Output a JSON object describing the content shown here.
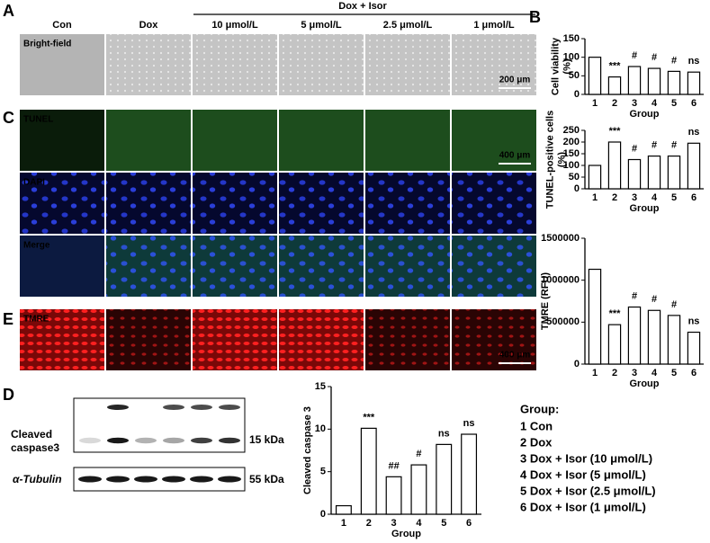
{
  "panel_labels": [
    "A",
    "B",
    "C",
    "D",
    "E"
  ],
  "group_header": "Dox + Isor",
  "columns": [
    "Con",
    "Dox",
    "10 μmol/L",
    "5 μmol/L",
    "2.5 μmol/L",
    "1 μmol/L"
  ],
  "rows": [
    "Bright-field",
    "TUNEL",
    "DAPI",
    "Merge",
    "TMRE"
  ],
  "scale_bars": [
    "200 μm",
    "400 μm",
    "400 μm"
  ],
  "blot": {
    "labels": [
      [
        "Cleaved",
        "caspase3"
      ],
      "α-Tubulin"
    ],
    "sizes": [
      "15 kDa",
      "55 kDa"
    ]
  },
  "legend": {
    "title": "Group:",
    "items": [
      "1 Con",
      "2 Dox",
      "3 Dox + Isor (10 μmol/L)",
      "4 Dox + Isor (5 μmol/L)",
      "5 Dox + Isor (2.5 μmol/L)",
      "6 Dox + Isor (1 μmol/L)"
    ]
  },
  "chart_data": [
    {
      "type": "bar",
      "ylabel": [
        "Cell viability",
        "(%)"
      ],
      "xlabel": "Group",
      "categories": [
        "1",
        "2",
        "3",
        "4",
        "5",
        "6"
      ],
      "values": [
        100,
        47,
        75,
        70,
        62,
        60
      ],
      "annotations": [
        null,
        "***",
        "#",
        "#",
        "#",
        "ns"
      ],
      "ylim": [
        0,
        150
      ],
      "yticks": [
        0,
        50,
        100,
        150
      ],
      "color": "#ffffff"
    },
    {
      "type": "bar",
      "ylabel": [
        "TUNEL-positive cells",
        "(%)"
      ],
      "xlabel": "Group",
      "categories": [
        "1",
        "2",
        "3",
        "4",
        "5",
        "6"
      ],
      "values": [
        100,
        200,
        125,
        140,
        140,
        195
      ],
      "annotations": [
        null,
        "***",
        "#",
        "#",
        "#",
        "ns"
      ],
      "ylim": [
        0,
        250
      ],
      "yticks": [
        0,
        50,
        100,
        150,
        200,
        250
      ],
      "color": "#ffffff"
    },
    {
      "type": "bar",
      "ylabel": [
        "TMRE (RFU)"
      ],
      "xlabel": "Group",
      "categories": [
        "1",
        "2",
        "3",
        "4",
        "5",
        "6"
      ],
      "values": [
        1130000,
        470000,
        680000,
        640000,
        580000,
        380000
      ],
      "annotations": [
        null,
        "***",
        "#",
        "#",
        "#",
        "ns"
      ],
      "ylim": [
        0,
        1500000
      ],
      "yticks": [
        0,
        500000,
        1000000,
        1500000
      ],
      "color": "#ffffff"
    },
    {
      "type": "bar",
      "ylabel": [
        "Cleaved caspase 3"
      ],
      "xlabel": "Group",
      "categories": [
        "1",
        "2",
        "3",
        "4",
        "5",
        "6"
      ],
      "values": [
        1,
        10.1,
        4.4,
        5.8,
        8.2,
        9.4
      ],
      "annotations": [
        null,
        "***",
        "##",
        "#",
        "ns",
        "ns"
      ],
      "ylim": [
        0,
        15
      ],
      "yticks": [
        0,
        5,
        10,
        15
      ],
      "color": "#ffffff"
    }
  ]
}
